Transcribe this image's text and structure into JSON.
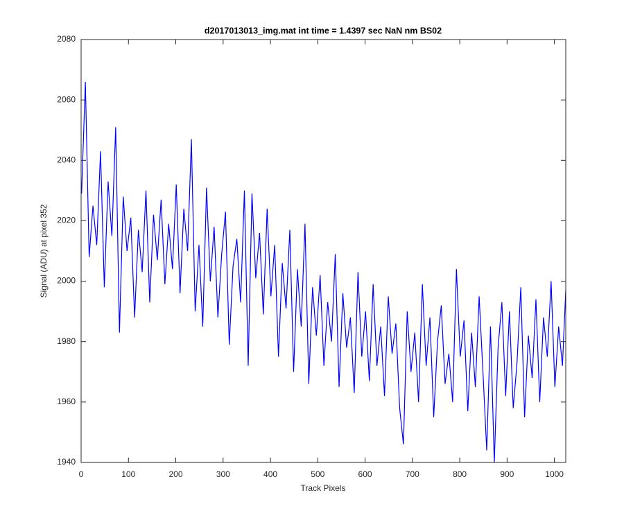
{
  "chart_data": {
    "type": "line",
    "title": "d2017013013_img.mat int time = 1.4397 sec  NaN nm BS02",
    "x_label": "Track Pixels",
    "y_label": "Signal (ADU) at pixel 352",
    "xlim": [
      0,
      1024
    ],
    "ylim": [
      1940,
      2080
    ],
    "xticks": [
      0,
      100,
      200,
      300,
      400,
      500,
      600,
      700,
      800,
      900,
      1000
    ],
    "yticks": [
      1940,
      1960,
      1980,
      2000,
      2020,
      2040,
      2060,
      2080
    ],
    "grid": false,
    "x": [
      1,
      9,
      17,
      25,
      33,
      41,
      49,
      57,
      65,
      73,
      81,
      89,
      97,
      105,
      113,
      121,
      129,
      137,
      145,
      153,
      161,
      169,
      177,
      185,
      193,
      201,
      209,
      217,
      225,
      233,
      241,
      249,
      257,
      265,
      273,
      281,
      289,
      297,
      305,
      313,
      321,
      329,
      337,
      345,
      353,
      361,
      369,
      377,
      385,
      393,
      401,
      409,
      417,
      425,
      433,
      441,
      449,
      457,
      465,
      473,
      481,
      489,
      497,
      505,
      513,
      521,
      529,
      537,
      545,
      553,
      561,
      569,
      577,
      585,
      593,
      601,
      609,
      617,
      625,
      633,
      641,
      649,
      657,
      665,
      673,
      681,
      689,
      697,
      705,
      713,
      721,
      729,
      737,
      745,
      753,
      761,
      769,
      777,
      785,
      793,
      801,
      809,
      817,
      825,
      833,
      841,
      849,
      857,
      865,
      873,
      881,
      889,
      897,
      905,
      913,
      921,
      929,
      937,
      945,
      953,
      961,
      969,
      977,
      985,
      993,
      1001,
      1009,
      1017,
      1024
    ],
    "series": [
      {
        "color": "#0000ff",
        "values": [
          2029,
          2066,
          2008,
          2025,
          2012,
          2043,
          1998,
          2033,
          2015,
          2051,
          1983,
          2028,
          2010,
          2021,
          1988,
          2017,
          2003,
          2030,
          1993,
          2022,
          2007,
          2027,
          1999,
          2019,
          2004,
          2032,
          1996,
          2024,
          2010,
          2047,
          1990,
          2012,
          1985,
          2031,
          2000,
          2018,
          1988,
          2009,
          2023,
          1979,
          2005,
          2014,
          1993,
          2030,
          1972,
          2029,
          2001,
          2016,
          1989,
          2024,
          1995,
          2012,
          1975,
          2006,
          1991,
          2017,
          1970,
          2004,
          1985,
          2019,
          1966,
          1998,
          1982,
          2002,
          1972,
          1993,
          1980,
          2009,
          1965,
          1996,
          1978,
          1988,
          1963,
          2003,
          1975,
          1990,
          1967,
          1999,
          1972,
          1985,
          1962,
          1995,
          1976,
          1986,
          1958,
          1946,
          1990,
          1970,
          1983,
          1960,
          1999,
          1972,
          1988,
          1955,
          1980,
          1992,
          1966,
          1976,
          1960,
          2004,
          1975,
          1987,
          1957,
          1983,
          1965,
          1995,
          1970,
          1944,
          1985,
          1940,
          1978,
          1993,
          1962,
          1990,
          1958,
          1973,
          1998,
          1955,
          1982,
          1968,
          1994,
          1960,
          1988,
          1975,
          2000,
          1965,
          1985,
          1972,
          1997
        ]
      }
    ]
  }
}
